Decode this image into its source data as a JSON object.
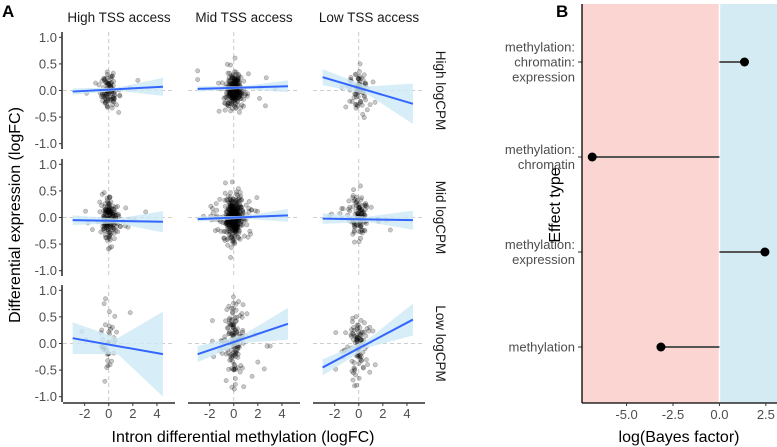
{
  "chart_data": [
    {
      "type": "scatter",
      "panel_label": "A",
      "xlabel": "Intron differential methylation (logFC)",
      "ylabel": "Differential expression (logFC)",
      "xlim": [
        -3.8,
        5.5
      ],
      "ylim": [
        -1.1,
        1.1
      ],
      "xticks": [
        "-2",
        "0",
        "2",
        "4"
      ],
      "xtick_values": [
        -2,
        0,
        2,
        4
      ],
      "yticks": [
        "1.0",
        "0.5",
        "0.0",
        "-0.5",
        "-1.0"
      ],
      "ytick_values": [
        1,
        0.5,
        0,
        -0.5,
        -1
      ],
      "columns": [
        "High TSS access",
        "Mid TSS access",
        "Low TSS access"
      ],
      "rows": [
        "High logCPM",
        "Mid logCPM",
        "Low logCPM"
      ],
      "point_color": "#000000",
      "fit_color": "#3366ff",
      "ribbon_color": "#cde8f5",
      "facets": [
        {
          "row": 0,
          "col": 0,
          "n": 100,
          "ysd": 0.18,
          "fit": [
            [
              -3,
              -0.02
            ],
            [
              4.5,
              0.07
            ]
          ],
          "se": [
            0.06,
            0.17
          ]
        },
        {
          "row": 0,
          "col": 1,
          "n": 250,
          "ysd": 0.16,
          "fit": [
            [
              -3,
              0.03
            ],
            [
              4.5,
              0.08
            ]
          ],
          "se": [
            0.05,
            0.11
          ]
        },
        {
          "row": 0,
          "col": 2,
          "n": 80,
          "ysd": 0.2,
          "fit": [
            [
              -3,
              0.25
            ],
            [
              4.5,
              -0.25
            ]
          ],
          "se": [
            0.15,
            0.38
          ]
        },
        {
          "row": 1,
          "col": 0,
          "n": 180,
          "ysd": 0.2,
          "fit": [
            [
              -3,
              -0.05
            ],
            [
              4.5,
              -0.08
            ]
          ],
          "se": [
            0.09,
            0.2
          ]
        },
        {
          "row": 1,
          "col": 1,
          "n": 400,
          "ysd": 0.2,
          "fit": [
            [
              -3,
              -0.03
            ],
            [
              4.5,
              0.04
            ]
          ],
          "se": [
            0.05,
            0.12
          ]
        },
        {
          "row": 1,
          "col": 2,
          "n": 120,
          "ysd": 0.2,
          "fit": [
            [
              -3,
              -0.02
            ],
            [
              4.5,
              -0.05
            ]
          ],
          "se": [
            0.1,
            0.18
          ]
        },
        {
          "row": 2,
          "col": 0,
          "n": 40,
          "ysd": 0.4,
          "fit": [
            [
              -3,
              0.1
            ],
            [
              4.5,
              -0.2
            ]
          ],
          "se": [
            0.3,
            0.8
          ]
        },
        {
          "row": 2,
          "col": 1,
          "n": 150,
          "ysd": 0.35,
          "fit": [
            [
              -3,
              -0.2
            ],
            [
              4.5,
              0.37
            ]
          ],
          "se": [
            0.15,
            0.3
          ]
        },
        {
          "row": 2,
          "col": 2,
          "n": 100,
          "ysd": 0.3,
          "fit": [
            [
              -3,
              -0.45
            ],
            [
              4.5,
              0.45
            ]
          ],
          "se": [
            0.15,
            0.3
          ]
        }
      ]
    },
    {
      "type": "lollipop",
      "panel_label": "B",
      "xlabel": "log(Bayes factor)",
      "ylabel": "Effect type",
      "xlim": [
        -7.4,
        3.1
      ],
      "xticks": [
        "-5.0",
        "-2.5",
        "0.0",
        "2.5"
      ],
      "xtick_values": [
        -5,
        -2.5,
        0,
        2.5
      ],
      "negative_bg": "#fbd5d1",
      "positive_bg": "#d5ebf4",
      "categories": [
        {
          "label": [
            "methylation:",
            "chromatin:",
            "expression"
          ],
          "value": 1.35
        },
        {
          "label": [
            "methylation:",
            "chromatin"
          ],
          "value": -6.85
        },
        {
          "label": [
            "methylation:",
            "expression"
          ],
          "value": 2.45
        },
        {
          "label": [
            "methylation"
          ],
          "value": -3.15
        }
      ]
    }
  ]
}
